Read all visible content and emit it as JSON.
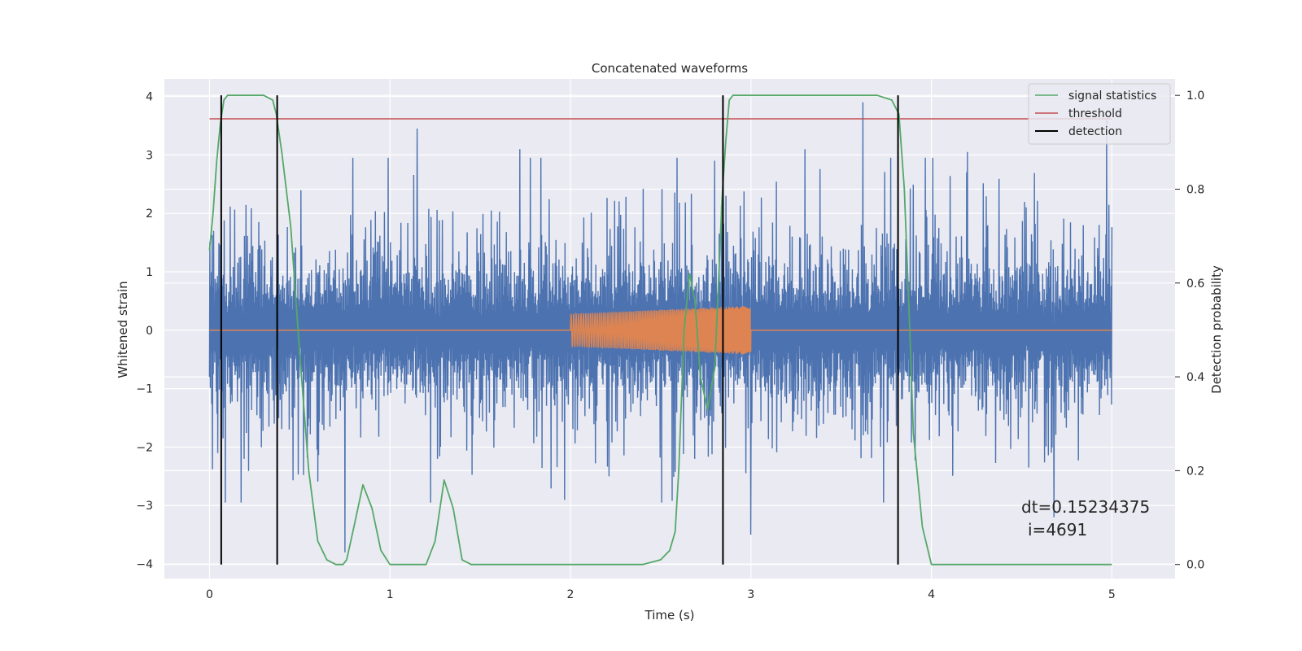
{
  "chart_data": {
    "type": "line",
    "title": "Concatenated waveforms",
    "xlabel": "Time (s)",
    "ylabel": "Whitened strain",
    "y2label": "Detection probability",
    "xlim": [
      -0.25,
      5.35
    ],
    "ylim": [
      -4.25,
      4.3
    ],
    "y2lim": [
      -0.03,
      1.035
    ],
    "xticks": [
      "0",
      "1",
      "2",
      "3",
      "4",
      "5"
    ],
    "yticks": [
      "−4",
      "−3",
      "−2",
      "−1",
      "0",
      "1",
      "2",
      "3",
      "4"
    ],
    "y2ticks": [
      "0.0",
      "0.2",
      "0.4",
      "0.6",
      "0.8",
      "1.0"
    ],
    "grid": true,
    "legend_position": "top-right",
    "legend": [
      "signal statistics",
      "threshold",
      "detection"
    ],
    "colors": {
      "strain": "#4c72b0",
      "waveform": "#dd8452",
      "signal_statistics": "#55a868",
      "threshold": "#c44e52",
      "detection": "#000000",
      "background": "#eaeaf2"
    },
    "strain_series": {
      "x_start": 0,
      "x_end": 5,
      "typical_amplitude": 1.5,
      "peak_spikes": [
        {
          "x": 1.15,
          "y": 3.45
        },
        {
          "x": 1.72,
          "y": 3.1
        },
        {
          "x": 2.8,
          "y": 2.9
        },
        {
          "x": 3.3,
          "y": 3.1
        },
        {
          "x": 3.62,
          "y": 3.9
        },
        {
          "x": 4.2,
          "y": 3.05
        },
        {
          "x": 4.97,
          "y": 3.6
        },
        {
          "x": 4.68,
          "y": -3.2
        },
        {
          "x": 3.0,
          "y": -3.5
        },
        {
          "x": 0.75,
          "y": -3.8
        }
      ]
    },
    "waveform_series": {
      "flat_range": [
        0,
        5
      ],
      "chirp_start": 2.0,
      "chirp_end": 3.0,
      "amplitude_start": 0.28,
      "amplitude_end": 0.42
    },
    "signal_statistics": {
      "x": [
        0,
        0.02,
        0.04,
        0.06,
        0.08,
        0.1,
        0.12,
        0.15,
        0.2,
        0.3,
        0.35,
        0.37,
        0.4,
        0.45,
        0.5,
        0.55,
        0.6,
        0.65,
        0.7,
        0.74,
        0.76,
        0.8,
        0.85,
        0.9,
        0.95,
        1.0,
        1.05,
        1.2,
        1.25,
        1.3,
        1.35,
        1.4,
        1.45,
        1.6,
        2.0,
        2.4,
        2.5,
        2.55,
        2.58,
        2.6,
        2.63,
        2.66,
        2.69,
        2.72,
        2.76,
        2.8,
        2.82,
        2.84,
        2.86,
        2.88,
        2.9,
        2.95,
        3.2,
        3.6,
        3.7,
        3.78,
        3.82,
        3.85,
        3.88,
        3.9,
        3.95,
        4.0,
        4.5,
        5.0
      ],
      "values": [
        0.67,
        0.75,
        0.86,
        0.94,
        0.99,
        1.0,
        1.0,
        1.0,
        1.0,
        1.0,
        0.99,
        0.96,
        0.88,
        0.72,
        0.45,
        0.2,
        0.05,
        0.01,
        0.0,
        0.0,
        0.01,
        0.08,
        0.17,
        0.12,
        0.03,
        0.0,
        0.0,
        0.0,
        0.05,
        0.18,
        0.12,
        0.01,
        0.0,
        0.0,
        0.0,
        0.0,
        0.01,
        0.03,
        0.07,
        0.2,
        0.5,
        0.62,
        0.56,
        0.4,
        0.33,
        0.42,
        0.6,
        0.78,
        0.9,
        0.99,
        1.0,
        1.0,
        1.0,
        1.0,
        1.0,
        0.99,
        0.96,
        0.8,
        0.5,
        0.28,
        0.08,
        0.0,
        0.0,
        0.0
      ]
    },
    "threshold": {
      "x_range": [
        0,
        5
      ],
      "value": 0.95
    },
    "detections": [
      0.065,
      0.375,
      2.845,
      3.815
    ],
    "annotation": {
      "line1": "dt=0.15234375",
      "line2": "i=4691"
    }
  }
}
